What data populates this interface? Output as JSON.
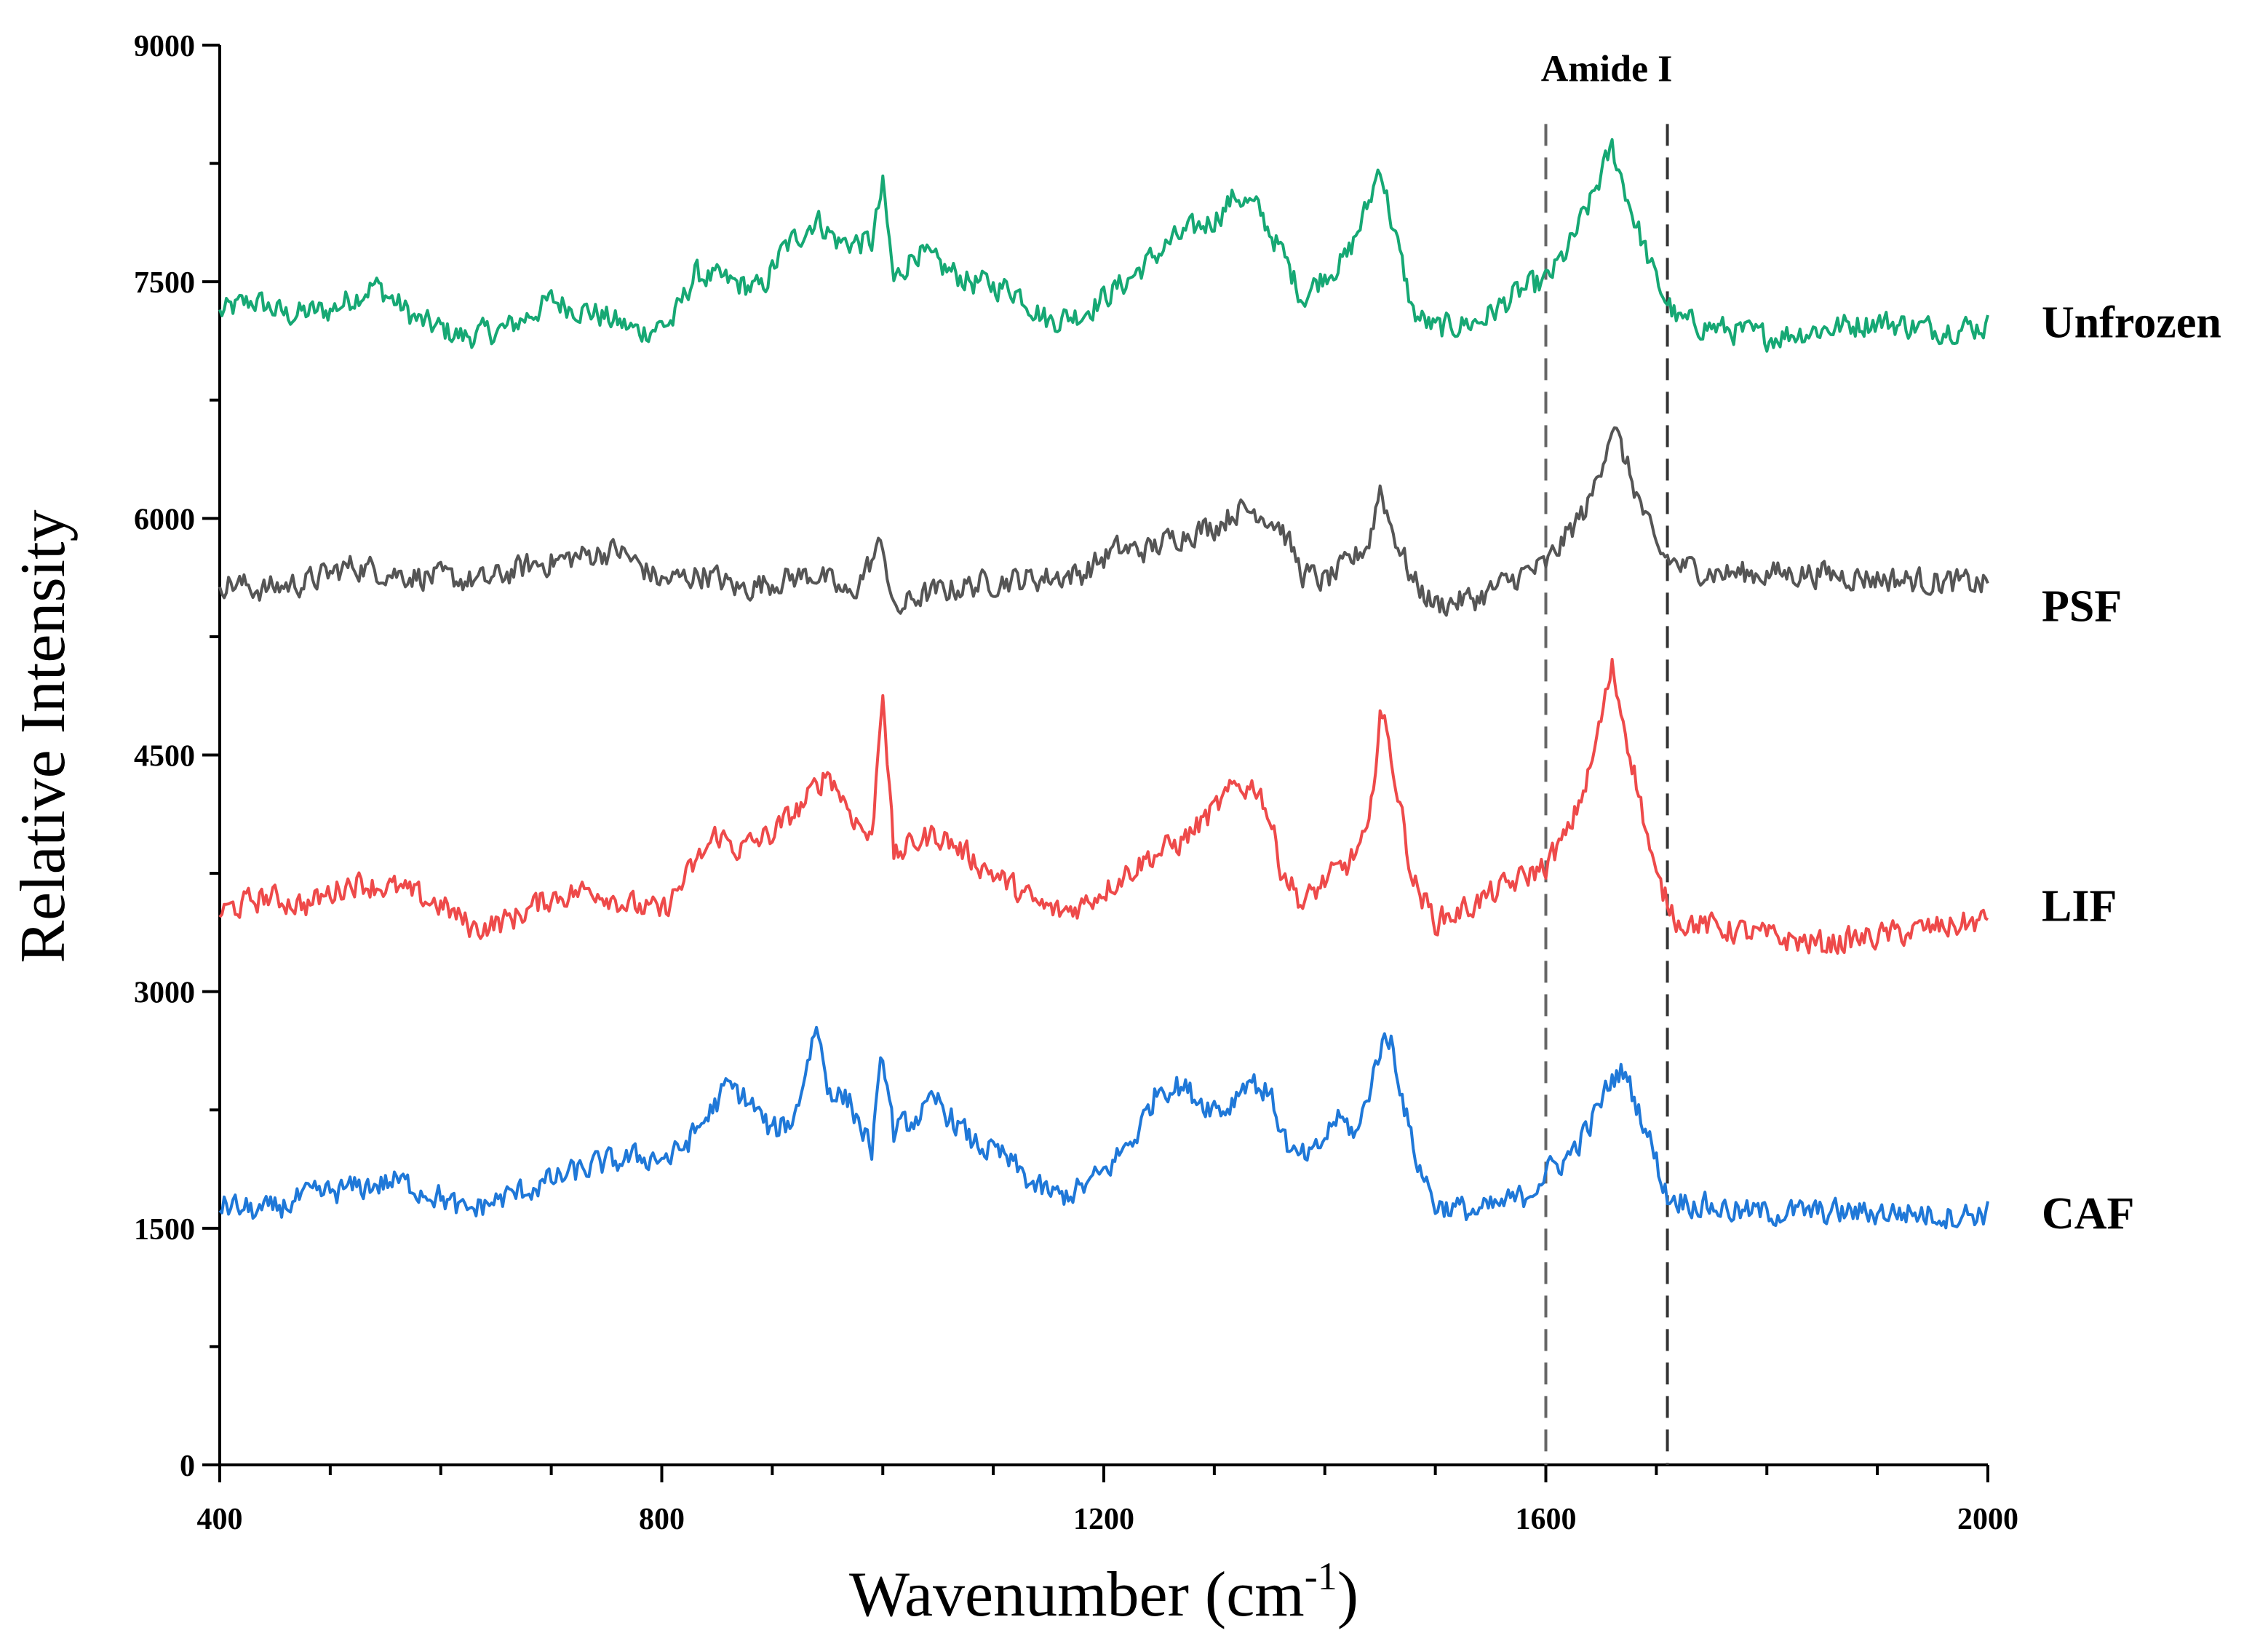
{
  "chart_data": {
    "type": "line",
    "title": "",
    "xlabel": "Wavenumber (cm",
    "xlabel_sup": "-1",
    "xlabel_close": ")",
    "ylabel": "Relative Intensity",
    "xlim": [
      400,
      2000
    ],
    "ylim": [
      0,
      9000
    ],
    "xticks": [
      400,
      800,
      1200,
      1600,
      2000
    ],
    "xtick_labels": [
      "400",
      "800",
      "1200",
      "1600",
      "2000"
    ],
    "xminor_step": 100,
    "yticks": [
      0,
      1500,
      3000,
      4500,
      6000,
      7500,
      9000
    ],
    "ytick_labels": [
      "0",
      "1500",
      "3000",
      "4500",
      "6000",
      "7500",
      "9000"
    ],
    "yminor_step": 750,
    "grid": false,
    "annotations": [
      {
        "type": "vline",
        "x": 1600,
        "style": "dashed",
        "color": "#666666"
      },
      {
        "type": "vline",
        "x": 1710,
        "style": "dashed",
        "color": "#333333"
      },
      {
        "type": "text",
        "text": "Amide I",
        "x": 1655,
        "y": 8900
      }
    ],
    "series": [
      {
        "name": "Unfrozen",
        "color": "#16A874",
        "label_y": 7250,
        "x": [
          400,
          430,
          460,
          500,
          540,
          580,
          620,
          660,
          700,
          740,
          780,
          810,
          830,
          860,
          890,
          910,
          940,
          960,
          990,
          1000,
          1010,
          1030,
          1050,
          1080,
          1120,
          1150,
          1180,
          1220,
          1260,
          1300,
          1320,
          1340,
          1360,
          1380,
          1400,
          1420,
          1440,
          1450,
          1460,
          1480,
          1500,
          1540,
          1580,
          1600,
          1620,
          1640,
          1660,
          1680,
          1700,
          1720,
          1760,
          1800,
          1850,
          1900,
          1950,
          2000
        ],
        "values": [
          7300,
          7380,
          7290,
          7320,
          7480,
          7250,
          7150,
          7200,
          7380,
          7300,
          7180,
          7250,
          7550,
          7500,
          7450,
          7700,
          7900,
          7750,
          7750,
          8100,
          7500,
          7700,
          7600,
          7500,
          7450,
          7250,
          7300,
          7500,
          7750,
          7900,
          8050,
          7950,
          7700,
          7400,
          7550,
          7650,
          8000,
          8250,
          7900,
          7300,
          7200,
          7250,
          7450,
          7500,
          7700,
          8000,
          8350,
          7900,
          7500,
          7250,
          7200,
          7150,
          7200,
          7250,
          7200,
          7220
        ]
      },
      {
        "name": "PSF",
        "color": "#555555",
        "label_y": 5450,
        "x": [
          400,
          440,
          480,
          520,
          560,
          600,
          640,
          680,
          720,
          760,
          780,
          800,
          840,
          870,
          900,
          940,
          970,
          1000,
          1010,
          1030,
          1060,
          1100,
          1140,
          1180,
          1210,
          1240,
          1270,
          1300,
          1320,
          1340,
          1360,
          1380,
          1400,
          1420,
          1440,
          1450,
          1460,
          1480,
          1500,
          1540,
          1580,
          1600,
          1620,
          1640,
          1660,
          1680,
          1700,
          1720,
          1760,
          1800,
          1850,
          1900,
          1950,
          2000
        ],
        "values": [
          5600,
          5550,
          5600,
          5700,
          5650,
          5620,
          5600,
          5700,
          5750,
          5800,
          5700,
          5600,
          5650,
          5550,
          5600,
          5650,
          5500,
          5850,
          5400,
          5500,
          5550,
          5600,
          5620,
          5650,
          5800,
          5800,
          5900,
          5950,
          6050,
          6050,
          5950,
          5650,
          5600,
          5700,
          5850,
          6200,
          5950,
          5600,
          5450,
          5500,
          5650,
          5700,
          5900,
          6100,
          6600,
          6200,
          5800,
          5700,
          5650,
          5650,
          5650,
          5620,
          5600,
          5580
        ]
      },
      {
        "name": "LIF",
        "color": "#EE4A4A",
        "label_y": 3550,
        "x": [
          400,
          420,
          440,
          480,
          520,
          560,
          600,
          630,
          660,
          700,
          740,
          770,
          800,
          830,
          850,
          870,
          900,
          930,
          950,
          970,
          990,
          1000,
          1010,
          1030,
          1050,
          1080,
          1110,
          1140,
          1160,
          1180,
          1210,
          1240,
          1270,
          1300,
          1320,
          1340,
          1350,
          1360,
          1380,
          1400,
          1420,
          1440,
          1450,
          1460,
          1480,
          1500,
          1520,
          1560,
          1600,
          1620,
          1640,
          1660,
          1680,
          1700,
          1720,
          1760,
          1800,
          1850,
          1900,
          1950,
          2000
        ],
        "values": [
          3500,
          3550,
          3600,
          3550,
          3700,
          3650,
          3550,
          3400,
          3450,
          3600,
          3650,
          3550,
          3500,
          3800,
          4000,
          3900,
          4000,
          4200,
          4400,
          4150,
          3950,
          4950,
          3850,
          3950,
          4000,
          3850,
          3700,
          3550,
          3500,
          3550,
          3700,
          3850,
          3950,
          4150,
          4300,
          4300,
          4100,
          3800,
          3550,
          3700,
          3800,
          4000,
          4800,
          4500,
          3700,
          3450,
          3500,
          3650,
          3800,
          4000,
          4400,
          5050,
          4400,
          3700,
          3450,
          3400,
          3350,
          3300,
          3350,
          3400,
          3450
        ]
      },
      {
        "name": "CAF",
        "color": "#1F78D8",
        "label_y": 1600,
        "x": [
          400,
          440,
          480,
          520,
          560,
          600,
          620,
          660,
          700,
          740,
          780,
          810,
          830,
          860,
          880,
          900,
          920,
          940,
          950,
          970,
          990,
          1000,
          1010,
          1030,
          1050,
          1080,
          1110,
          1140,
          1160,
          1180,
          1200,
          1230,
          1250,
          1270,
          1290,
          1310,
          1330,
          1350,
          1370,
          1390,
          1410,
          1430,
          1450,
          1460,
          1480,
          1500,
          1540,
          1580,
          1600,
          1620,
          1640,
          1660,
          1670,
          1690,
          1710,
          1740,
          1780,
          1820,
          1870,
          1920,
          1970,
          2000
        ],
        "values": [
          1650,
          1600,
          1700,
          1750,
          1800,
          1700,
          1600,
          1700,
          1800,
          1900,
          1950,
          1950,
          2100,
          2400,
          2300,
          2100,
          2200,
          2800,
          2400,
          2300,
          2000,
          2600,
          2100,
          2200,
          2300,
          2050,
          1950,
          1750,
          1700,
          1750,
          1850,
          2100,
          2400,
          2400,
          2300,
          2250,
          2450,
          2350,
          1950,
          1950,
          2200,
          2100,
          2650,
          2700,
          2000,
          1650,
          1600,
          1700,
          1850,
          1950,
          2150,
          2450,
          2500,
          2150,
          1700,
          1650,
          1600,
          1600,
          1600,
          1600,
          1580,
          1600
        ]
      }
    ]
  }
}
